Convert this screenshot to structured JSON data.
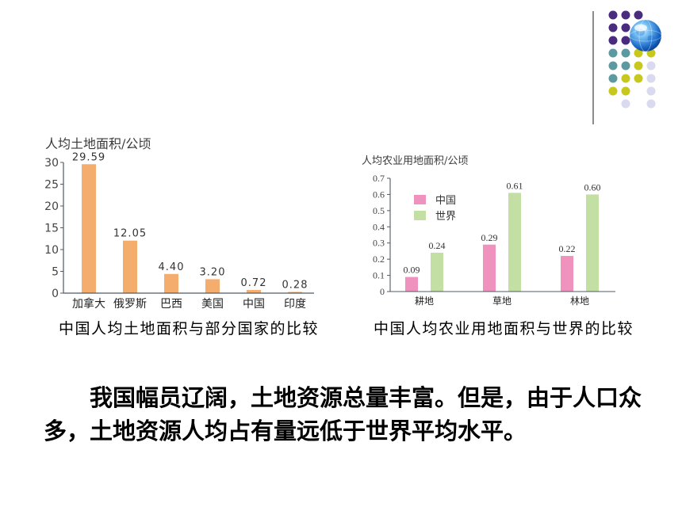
{
  "slide": {
    "decor": {
      "icon": "globe-icon",
      "dot_colors": {
        "purple": "#4a2c7f",
        "teal": "#5c9aa0",
        "yellow": "#c8c81c",
        "lavender": "#d9d9ef"
      }
    },
    "body": {
      "paragraph": "我国幅员辽阔，土地资源总量丰富。但是，由于人口众多，土地资源人均占有量远低于世界平均水平。"
    }
  },
  "chart_data": [
    {
      "type": "bar",
      "title": "中国人均土地面积与部分国家的比较",
      "ylabel": "人均土地面积/公顷",
      "categories": [
        "加拿大",
        "俄罗斯",
        "巴西",
        "美国",
        "中国",
        "印度"
      ],
      "values": [
        29.59,
        12.05,
        4.4,
        3.2,
        0.72,
        0.28
      ],
      "value_labels": [
        "29.59",
        "12.05",
        "4.40",
        "3.20",
        "0.72",
        "0.28"
      ],
      "ylim": [
        0,
        30
      ],
      "yticks": [
        "0",
        "5",
        "10",
        "15",
        "20",
        "25",
        "30"
      ],
      "color": "#f5ad6d",
      "grid": false
    },
    {
      "type": "bar",
      "title": "中国人均农业用地面积与世界的比较",
      "ylabel": "人均农业用地面积/公顷",
      "categories": [
        "耕地",
        "草地",
        "林地"
      ],
      "series": [
        {
          "name": "中国",
          "values": [
            0.09,
            0.29,
            0.22
          ],
          "value_labels": [
            "0.09",
            "0.29",
            "0.22"
          ],
          "color": "#ef93be"
        },
        {
          "name": "世界",
          "values": [
            0.24,
            0.61,
            0.6
          ],
          "value_labels": [
            "0.24",
            "0.61",
            "0.60"
          ],
          "color": "#c4dfa3"
        }
      ],
      "ylim": [
        0,
        0.7
      ],
      "yticks": [
        "0",
        "0.1",
        "0.2",
        "0.3",
        "0.4",
        "0.5",
        "0.6",
        "0.7"
      ],
      "legend": "top-left",
      "grid": false
    }
  ]
}
